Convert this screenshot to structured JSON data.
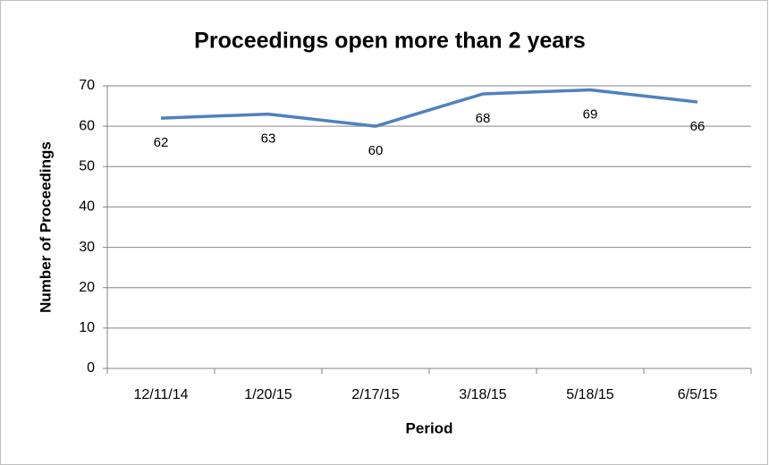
{
  "chart_data": {
    "type": "line",
    "title": "Proceedings open more than 2 years",
    "x_label": "Period",
    "y_label": "Number of Proceedings",
    "categories": [
      "12/11/14",
      "1/20/15",
      "2/17/15",
      "3/18/15",
      "5/18/15",
      "6/5/15"
    ],
    "series": [
      {
        "name": "Proceedings",
        "color": "#4f81bd",
        "values": [
          62,
          63,
          60,
          68,
          69,
          66
        ]
      }
    ],
    "ylim": [
      0,
      70
    ],
    "yticks": [
      0,
      10,
      20,
      30,
      40,
      50,
      60,
      70
    ],
    "grid": true,
    "data_labels": true
  }
}
